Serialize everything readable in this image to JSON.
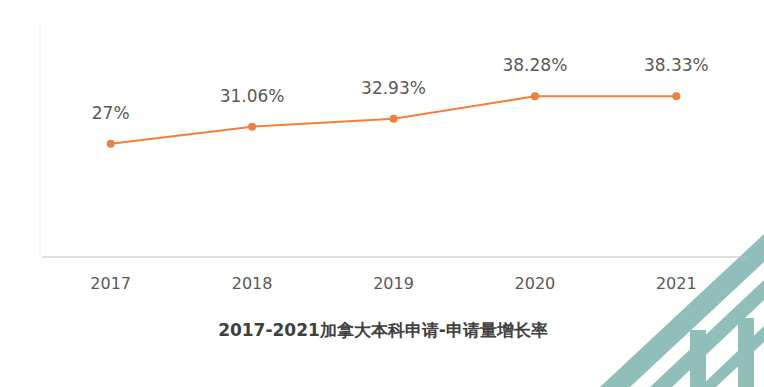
{
  "chart_data": {
    "type": "line",
    "title": "2017-2021加拿大本科申请-申请量增长率",
    "categories": [
      "2017",
      "2018",
      "2019",
      "2020",
      "2021"
    ],
    "values": [
      27,
      31.06,
      32.93,
      38.28,
      38.33
    ],
    "value_labels": [
      "27%",
      "31.06%",
      "32.93%",
      "38.28%",
      "38.33%"
    ],
    "color": "#f0803c",
    "ylim": [
      0,
      56
    ],
    "data_labels": true,
    "tick_labels": "x",
    "marker": "circle",
    "line_style": "solid",
    "grid": false
  }
}
